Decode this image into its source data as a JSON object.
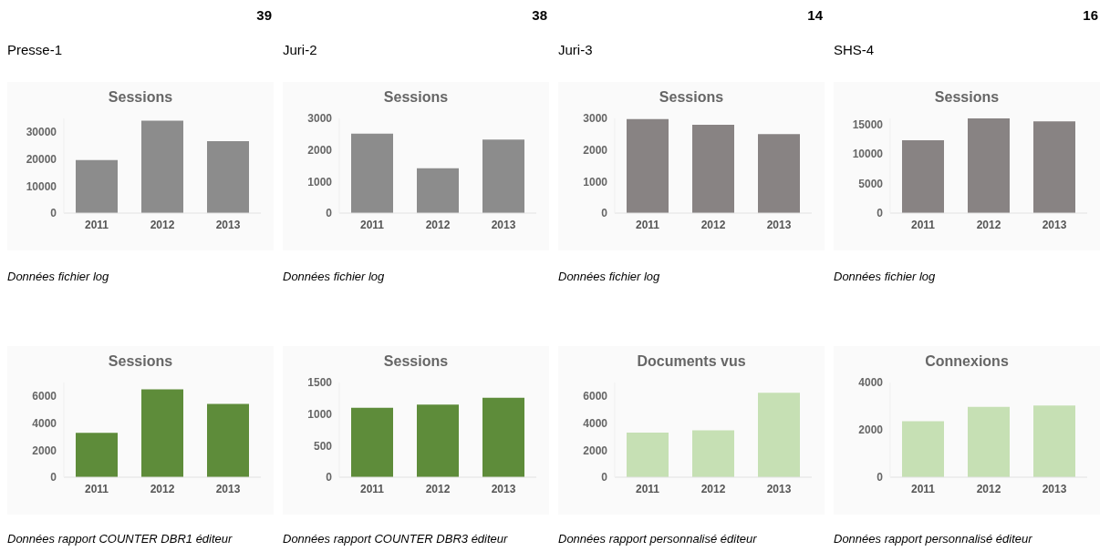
{
  "chart_data": [
    {
      "type": "bar",
      "title": "Sessions",
      "subtitle": "Presse-1",
      "annotations": [
        "39",
        "Données fichier log"
      ],
      "categories": [
        "2011",
        "2012",
        "2013"
      ],
      "values": [
        19600,
        34200,
        26600
      ],
      "color": "#8c8c8c",
      "ylim": [
        0,
        35000
      ],
      "yticks": [
        0,
        10000,
        20000,
        30000
      ]
    },
    {
      "type": "bar",
      "title": "Sessions",
      "subtitle": "Juri-2",
      "annotations": [
        "38",
        "Données fichier log"
      ],
      "categories": [
        "2011",
        "2012",
        "2013"
      ],
      "values": [
        2520,
        1420,
        2330
      ],
      "color": "#8c8c8c",
      "ylim": [
        0,
        3000
      ],
      "yticks": [
        0,
        1000,
        2000,
        3000
      ]
    },
    {
      "type": "bar",
      "title": "Sessions",
      "subtitle": "Juri-3",
      "annotations": [
        "14",
        "Données fichier log"
      ],
      "categories": [
        "2011",
        "2012",
        "2013"
      ],
      "values": [
        2980,
        2800,
        2500
      ],
      "color": "#888383",
      "ylim": [
        0,
        3000
      ],
      "yticks": [
        0,
        1000,
        2000,
        3000
      ]
    },
    {
      "type": "bar",
      "title": "Sessions",
      "subtitle": "SHS-4",
      "annotations": [
        "16",
        "Données fichier log"
      ],
      "categories": [
        "2011",
        "2012",
        "2013"
      ],
      "values": [
        12300,
        16000,
        15500
      ],
      "color": "#888383",
      "ylim": [
        0,
        16000
      ],
      "yticks": [
        0,
        5000,
        10000,
        15000
      ]
    },
    {
      "type": "bar",
      "title": "Sessions",
      "annotations": [
        "Données rapport COUNTER DBR1 éditeur"
      ],
      "categories": [
        "2011",
        "2012",
        "2013"
      ],
      "values": [
        3280,
        6490,
        5410
      ],
      "color": "#5e8c3a",
      "ylim": [
        0,
        7000
      ],
      "yticks": [
        0,
        2000,
        4000,
        6000
      ]
    },
    {
      "type": "bar",
      "title": "Sessions",
      "annotations": [
        "Données rapport COUNTER DBR3 éditeur"
      ],
      "categories": [
        "2011",
        "2012",
        "2013"
      ],
      "values": [
        1100,
        1150,
        1260
      ],
      "color": "#5e8c3a",
      "ylim": [
        0,
        1500
      ],
      "yticks": [
        0,
        500,
        1000,
        1500
      ]
    },
    {
      "type": "bar",
      "title": "Documents vus",
      "annotations": [
        "Données rapport personnalisé éditeur"
      ],
      "categories": [
        "2011",
        "2012",
        "2013"
      ],
      "values": [
        3300,
        3470,
        6240
      ],
      "color": "#c6e0b4",
      "ylim": [
        0,
        7000
      ],
      "yticks": [
        0,
        2000,
        4000,
        6000
      ]
    },
    {
      "type": "bar",
      "title": "Connexions",
      "annotations": [
        "Données rapport personnalisé éditeur"
      ],
      "categories": [
        "2011",
        "2012",
        "2013"
      ],
      "values": [
        2370,
        2970,
        3030
      ],
      "color": "#c6e0b4",
      "ylim": [
        0,
        4000
      ],
      "yticks": [
        0,
        2000,
        4000
      ]
    }
  ]
}
